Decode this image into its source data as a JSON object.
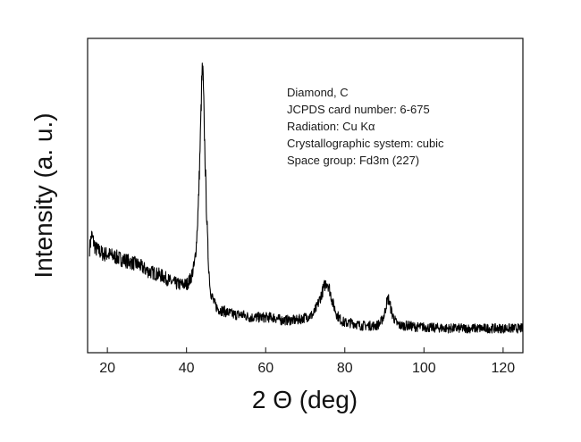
{
  "chart_data": {
    "type": "line",
    "title": "",
    "xlabel": "2 Θ (deg)",
    "ylabel": "Intensity (a. u.)",
    "xlim": [
      15,
      125
    ],
    "ylim": [
      0,
      100
    ],
    "x_ticks": [
      20,
      40,
      60,
      80,
      100,
      120
    ],
    "y_ticks": [],
    "grid": false,
    "legend": "none",
    "line_color": "#000000",
    "annotations": [
      "Diamond, C",
      "JCPDS card number: 6-675",
      "Radiation: Cu Kα",
      "Crystallographic system: cubic",
      "Space group: Fd3m (227)"
    ],
    "series": [
      {
        "x": [
          15.5,
          16,
          17,
          18,
          19,
          20,
          22,
          24,
          26,
          28,
          30,
          32,
          34,
          36,
          38,
          39,
          40,
          41,
          42,
          42.5,
          43,
          43.5,
          43.8,
          44,
          44.2,
          44.5,
          45,
          45.5,
          46,
          47,
          48,
          50,
          52,
          54,
          56,
          58,
          60,
          62,
          64,
          66,
          68,
          70,
          72,
          73,
          74,
          75,
          75.5,
          76,
          76.5,
          77,
          78,
          79,
          80,
          82,
          84,
          86,
          88,
          89,
          90,
          90.5,
          91,
          91.5,
          92,
          93,
          94,
          96,
          98,
          100,
          102,
          104,
          106,
          108,
          110,
          112,
          114,
          116,
          118,
          120,
          122,
          124,
          125
        ],
        "y": [
          32,
          37,
          32,
          31,
          30,
          30,
          29,
          28,
          27,
          26,
          24,
          23,
          22,
          20,
          19,
          19,
          19,
          21,
          26,
          34,
          48,
          72,
          90,
          97,
          93,
          75,
          48,
          28,
          17,
          12,
          10,
          9,
          8,
          8,
          7,
          7,
          7,
          7,
          6,
          6,
          6,
          7,
          8,
          11,
          15,
          19,
          20,
          18,
          15,
          12,
          8,
          6,
          5,
          5,
          4,
          4,
          4,
          5,
          8,
          12,
          14,
          11,
          8,
          5,
          4,
          4,
          3.5,
          3.5,
          3.2,
          3.2,
          3,
          3,
          3,
          3,
          3,
          3,
          3,
          3,
          3,
          3,
          3
        ]
      }
    ]
  }
}
